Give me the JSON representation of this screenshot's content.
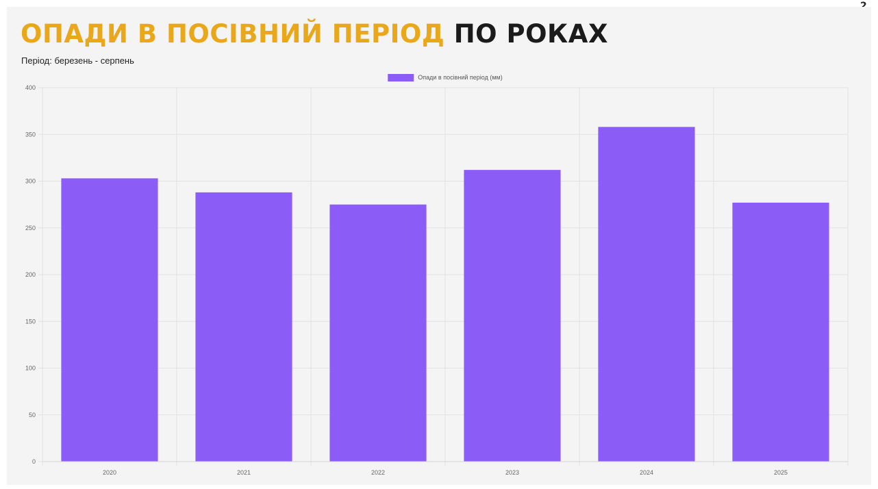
{
  "page": {
    "title_accent": "ОПАДИ В ПОСІВНИЙ ПЕРІОД",
    "title_rest": "ПО РОКАХ",
    "subtitle": "Період: березень - серпень"
  },
  "colors": {
    "accent": "#e9a71a",
    "title_dark": "#1b1b1b",
    "bar": "#8b5cf6",
    "background": "#f4f4f4",
    "grid": "#e2e2e2"
  },
  "chart_data": {
    "type": "bar",
    "categories": [
      "2020",
      "2021",
      "2022",
      "2023",
      "2024",
      "2025"
    ],
    "series": [
      {
        "name": "Опади в посівний період (мм)",
        "values": [
          303,
          288,
          275,
          312,
          358,
          277
        ]
      }
    ],
    "ylim": [
      0,
      400
    ],
    "yticks": [
      0,
      50,
      100,
      150,
      200,
      250,
      300,
      350,
      400
    ],
    "xlabel": "",
    "ylabel": "",
    "grid": true,
    "legend_position": "top-center"
  }
}
